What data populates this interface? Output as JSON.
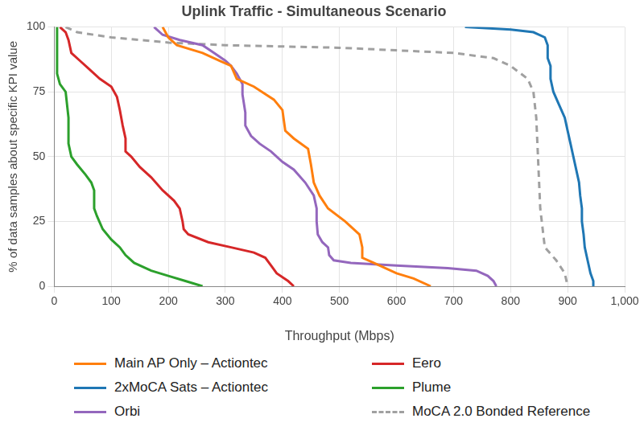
{
  "chart_data": {
    "type": "line",
    "title": "Uplink Traffic - Simultaneous Scenario",
    "x_label": "Throughput (Mbps)",
    "y_label": "% of data samples about specific KPI value",
    "xlim": [
      0,
      1000
    ],
    "xticks": [
      0,
      100,
      200,
      300,
      400,
      500,
      600,
      700,
      800,
      900,
      1000
    ],
    "ylim": [
      0,
      100
    ],
    "yticks": [
      0,
      25,
      50,
      75,
      100
    ],
    "grid": true,
    "legend": "bottom",
    "series": [
      {
        "name": "Main AP Only – Actiontec",
        "color": "#ff7f0e",
        "line_style": "solid",
        "x": [
          190,
          200,
          215,
          260,
          290,
          310,
          320,
          350,
          385,
          400,
          405,
          420,
          445,
          450,
          455,
          465,
          480,
          510,
          535,
          540,
          540,
          560,
          600,
          630,
          660
        ],
        "values": [
          100,
          96,
          93,
          90,
          87,
          85,
          80,
          77,
          72,
          68,
          60,
          57,
          53,
          47,
          40,
          35,
          30,
          25,
          20,
          15,
          11,
          9,
          5,
          3,
          0
        ]
      },
      {
        "name": "Eero",
        "color": "#d62728",
        "line_style": "solid",
        "x": [
          10,
          20,
          25,
          30,
          45,
          60,
          80,
          100,
          110,
          115,
          120,
          125,
          125,
          135,
          150,
          170,
          190,
          210,
          220,
          225,
          227,
          235,
          270,
          310,
          350,
          370,
          380,
          390,
          410,
          420
        ],
        "values": [
          100,
          98,
          95,
          90,
          87,
          84,
          80,
          77,
          73,
          68,
          62,
          57,
          52,
          50,
          46,
          42,
          37,
          33,
          30,
          25,
          22,
          20,
          17,
          15,
          13,
          11,
          8,
          5,
          2,
          0
        ]
      },
      {
        "name": "2xMoCA Sats – Actiontec",
        "color": "#1f77b4",
        "line_style": "solid",
        "x": [
          720,
          800,
          840,
          860,
          865,
          865,
          870,
          870,
          875,
          885,
          895,
          900,
          905,
          910,
          915,
          920,
          922,
          925,
          925,
          928,
          930,
          935,
          940,
          945,
          945
        ],
        "values": [
          100,
          99,
          98,
          96,
          93,
          88,
          85,
          80,
          75,
          70,
          65,
          60,
          55,
          50,
          45,
          40,
          35,
          30,
          25,
          20,
          15,
          10,
          5,
          2,
          0
        ]
      },
      {
        "name": "Plume",
        "color": "#2ca02c",
        "line_style": "solid",
        "x": [
          5,
          5,
          5,
          10,
          20,
          25,
          25,
          30,
          40,
          55,
          65,
          70,
          70,
          75,
          85,
          100,
          115,
          125,
          140,
          170,
          200,
          230,
          260
        ],
        "values": [
          100,
          90,
          82,
          78,
          75,
          65,
          55,
          50,
          47,
          43,
          40,
          37,
          30,
          27,
          22,
          18,
          15,
          12,
          9,
          6,
          4,
          2,
          0
        ]
      },
      {
        "name": "Orbi",
        "color": "#9467bd",
        "line_style": "solid",
        "x": [
          175,
          190,
          220,
          260,
          280,
          300,
          310,
          320,
          330,
          330,
          335,
          335,
          345,
          360,
          380,
          400,
          420,
          440,
          455,
          460,
          460,
          462,
          470,
          480,
          482,
          490,
          520,
          600,
          690,
          740,
          760,
          770,
          775
        ],
        "values": [
          100,
          97,
          95,
          93,
          90,
          87,
          85,
          82,
          78,
          74,
          67,
          62,
          58,
          55,
          52,
          48,
          45,
          40,
          35,
          30,
          25,
          20,
          17,
          15,
          12,
          10,
          9,
          8,
          7,
          6,
          4,
          2,
          0
        ]
      },
      {
        "name": "MoCA 2.0 Bonded Reference",
        "color": "#a0a0a0",
        "line_style": "dashed",
        "x": [
          20,
          40,
          70,
          100,
          200,
          300,
          500,
          600,
          700,
          770,
          800,
          830,
          840,
          845,
          848,
          852,
          860,
          880,
          895,
          900
        ],
        "values": [
          100,
          98,
          97,
          96,
          94,
          93,
          92,
          91,
          90,
          88,
          85,
          80,
          75,
          65,
          50,
          30,
          15,
          10,
          5,
          0
        ]
      }
    ]
  }
}
